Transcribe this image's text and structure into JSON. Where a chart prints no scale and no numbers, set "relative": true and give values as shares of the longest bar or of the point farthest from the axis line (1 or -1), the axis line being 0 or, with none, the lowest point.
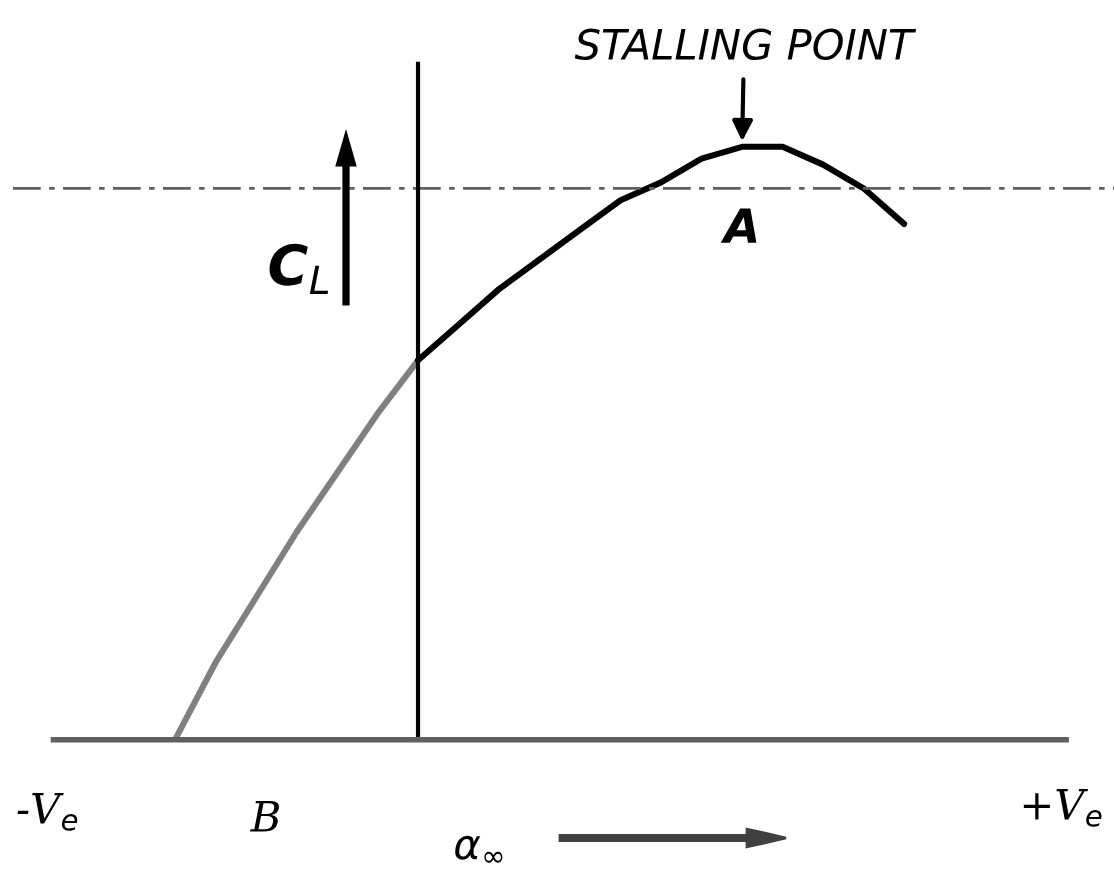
{
  "chart_data": {
    "type": "line",
    "relative": true,
    "xlabel": "α$_{∞}$",
    "ylabel": "C$_{L}$",
    "categories": [
      null,
      null,
      null,
      null,
      null,
      null,
      null,
      null,
      null,
      null,
      null,
      null,
      null,
      null,
      null,
      null,
      null,
      null,
      null,
      null,
      null,
      null,
      null,
      null,
      null,
      null
    ],
    "series": [
      {
        "color": "#808080",
        "values": [
          null,
          null,
          null,
          0,
          0.13,
          0.24,
          0.35,
          0.45,
          0.55,
          0.64,
          null,
          null,
          null,
          null,
          null,
          null,
          null,
          null,
          null,
          null,
          null,
          null,
          null,
          null,
          null,
          null
        ]
      },
      {
        "color": "#000000",
        "values": [
          null,
          null,
          null,
          null,
          null,
          null,
          null,
          null,
          null,
          0.64,
          0.7,
          0.76,
          0.81,
          0.86,
          0.91,
          0.94,
          0.98,
          1,
          1,
          0.97,
          0.93,
          0.87,
          null,
          null,
          null,
          null
        ]
      }
    ],
    "ref_lines": [
      {
        "axis": "y",
        "value": 0.93,
        "color": "#606060",
        "line_style": "dashed"
      }
    ],
    "annotations": [
      "STALLING POINT",
      "A",
      "B",
      "-V$_{e}$",
      "+V$_{e}$"
    ],
    "marker": "none",
    "line_style": "solid"
  }
}
